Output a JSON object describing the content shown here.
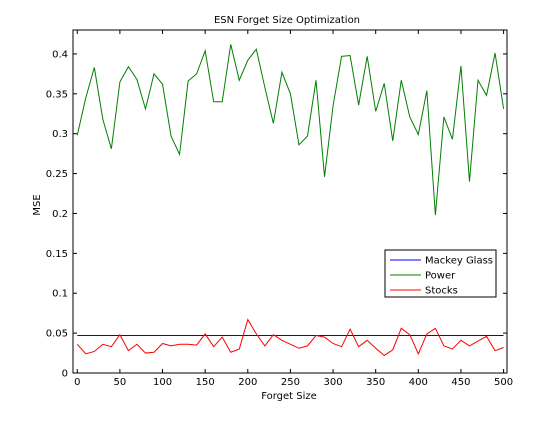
{
  "chart_data": {
    "type": "line",
    "title": "ESN Forget Size Optimization",
    "xlabel": "Forget Size",
    "ylabel": "MSE",
    "xlim": [
      0,
      500
    ],
    "ylim": [
      0,
      0.43
    ],
    "xticks": [
      0,
      50,
      100,
      150,
      200,
      250,
      300,
      350,
      400,
      450,
      500
    ],
    "yticks": [
      0,
      0.05,
      0.1,
      0.15,
      0.2,
      0.25,
      0.3,
      0.35,
      0.4
    ],
    "xtick_labels": [
      "0",
      "50",
      "100",
      "150",
      "200",
      "250",
      "300",
      "350",
      "400",
      "450",
      "500"
    ],
    "ytick_labels": [
      "0",
      "0.05",
      "0.1",
      "0.15",
      "0.2",
      "0.25",
      "0.3",
      "0.35",
      "0.4"
    ],
    "grid": false,
    "legend_position": "right",
    "x": [
      0,
      10,
      20,
      30,
      40,
      50,
      60,
      70,
      80,
      90,
      100,
      110,
      120,
      130,
      140,
      150,
      160,
      170,
      180,
      190,
      200,
      210,
      220,
      230,
      240,
      250,
      260,
      270,
      280,
      290,
      300,
      310,
      320,
      330,
      340,
      350,
      360,
      370,
      380,
      390,
      400,
      410,
      420,
      430,
      440,
      450,
      460,
      470,
      480,
      490,
      500
    ],
    "series": [
      {
        "name": "Mackey Glass",
        "color": "#0000ff",
        "values": [
          0.047,
          0.047,
          0.047,
          0.047,
          0.047,
          0.047,
          0.047,
          0.047,
          0.047,
          0.047,
          0.047,
          0.047,
          0.047,
          0.047,
          0.047,
          0.047,
          0.047,
          0.047,
          0.047,
          0.047,
          0.047,
          0.047,
          0.047,
          0.047,
          0.047,
          0.047,
          0.047,
          0.047,
          0.047,
          0.047,
          0.047,
          0.047,
          0.047,
          0.047,
          0.047,
          0.047,
          0.047,
          0.047,
          0.047,
          0.047,
          0.047,
          0.047,
          0.047,
          0.047,
          0.047,
          0.047,
          0.047,
          0.047,
          0.047,
          0.047,
          0.047
        ]
      },
      {
        "name": "Power",
        "color": "#008000",
        "values": [
          0.298,
          0.345,
          0.383,
          0.318,
          0.281,
          0.365,
          0.384,
          0.368,
          0.331,
          0.375,
          0.362,
          0.297,
          0.274,
          0.366,
          0.375,
          0.404,
          0.34,
          0.34,
          0.412,
          0.367,
          0.392,
          0.406,
          0.358,
          0.313,
          0.377,
          0.35,
          0.286,
          0.297,
          0.367,
          0.246,
          0.335,
          0.397,
          0.398,
          0.336,
          0.397,
          0.328,
          0.363,
          0.291,
          0.367,
          0.321,
          0.299,
          0.354,
          0.198,
          0.321,
          0.293,
          0.385,
          0.24,
          0.367,
          0.348,
          0.401,
          0.331
        ]
      },
      {
        "name": "Stocks",
        "color": "#ff0000",
        "values": [
          0.036,
          0.024,
          0.027,
          0.036,
          0.033,
          0.048,
          0.028,
          0.036,
          0.025,
          0.026,
          0.037,
          0.034,
          0.036,
          0.036,
          0.035,
          0.049,
          0.033,
          0.045,
          0.026,
          0.03,
          0.067,
          0.049,
          0.034,
          0.048,
          0.041,
          0.036,
          0.031,
          0.034,
          0.047,
          0.045,
          0.037,
          0.033,
          0.055,
          0.033,
          0.041,
          0.031,
          0.022,
          0.029,
          0.056,
          0.048,
          0.024,
          0.049,
          0.056,
          0.034,
          0.03,
          0.041,
          0.034,
          0.04,
          0.046,
          0.028,
          0.032
        ]
      }
    ]
  }
}
